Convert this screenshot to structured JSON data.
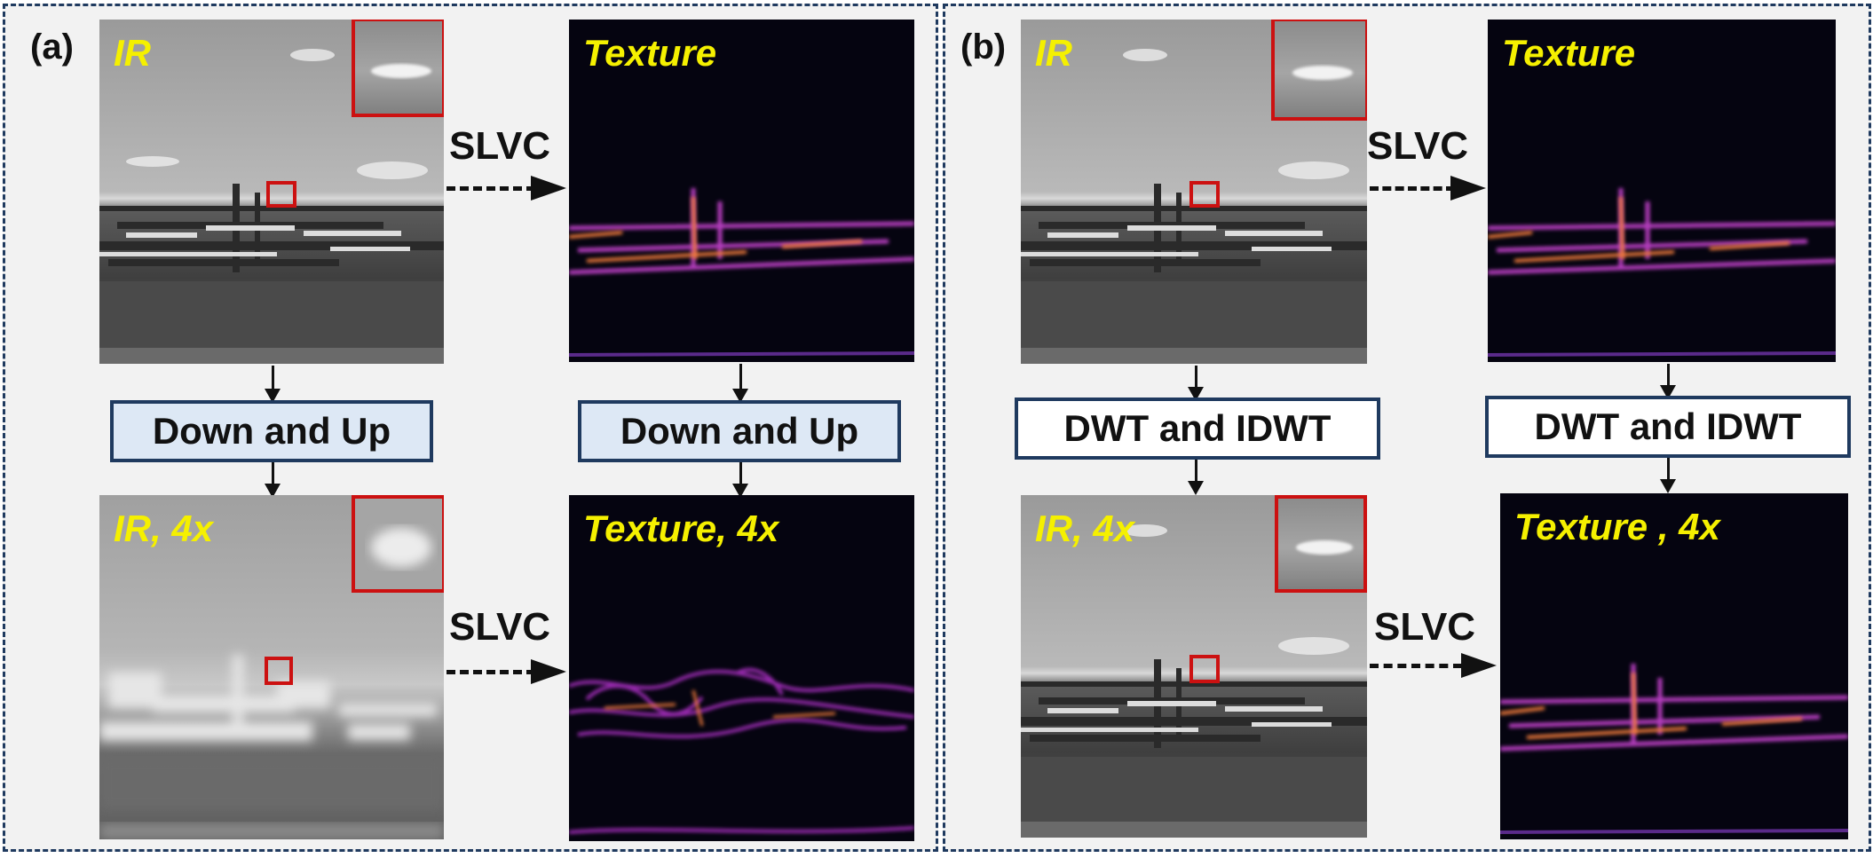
{
  "panels": {
    "a": {
      "label": "(a)",
      "ir_label": "IR",
      "texture_label": "Texture",
      "process_label": "Down and Up",
      "ir4x_label": "IR, 4x",
      "texture4x_label": "Texture, 4x",
      "arrow_label": "SLVC"
    },
    "b": {
      "label": "(b)",
      "ir_label": "IR",
      "texture_label": "Texture",
      "process_label": "DWT and IDWT",
      "ir4x_label": "IR, 4x",
      "texture4x_label": "Texture , 4x",
      "arrow_label": "SLVC"
    }
  },
  "colors": {
    "label_yellow": "#f5f000",
    "roi_red": "#cc1111",
    "border_navy": "#1f3a5f",
    "process_box_a": "#dde8f5",
    "process_box_b": "#ffffff"
  }
}
